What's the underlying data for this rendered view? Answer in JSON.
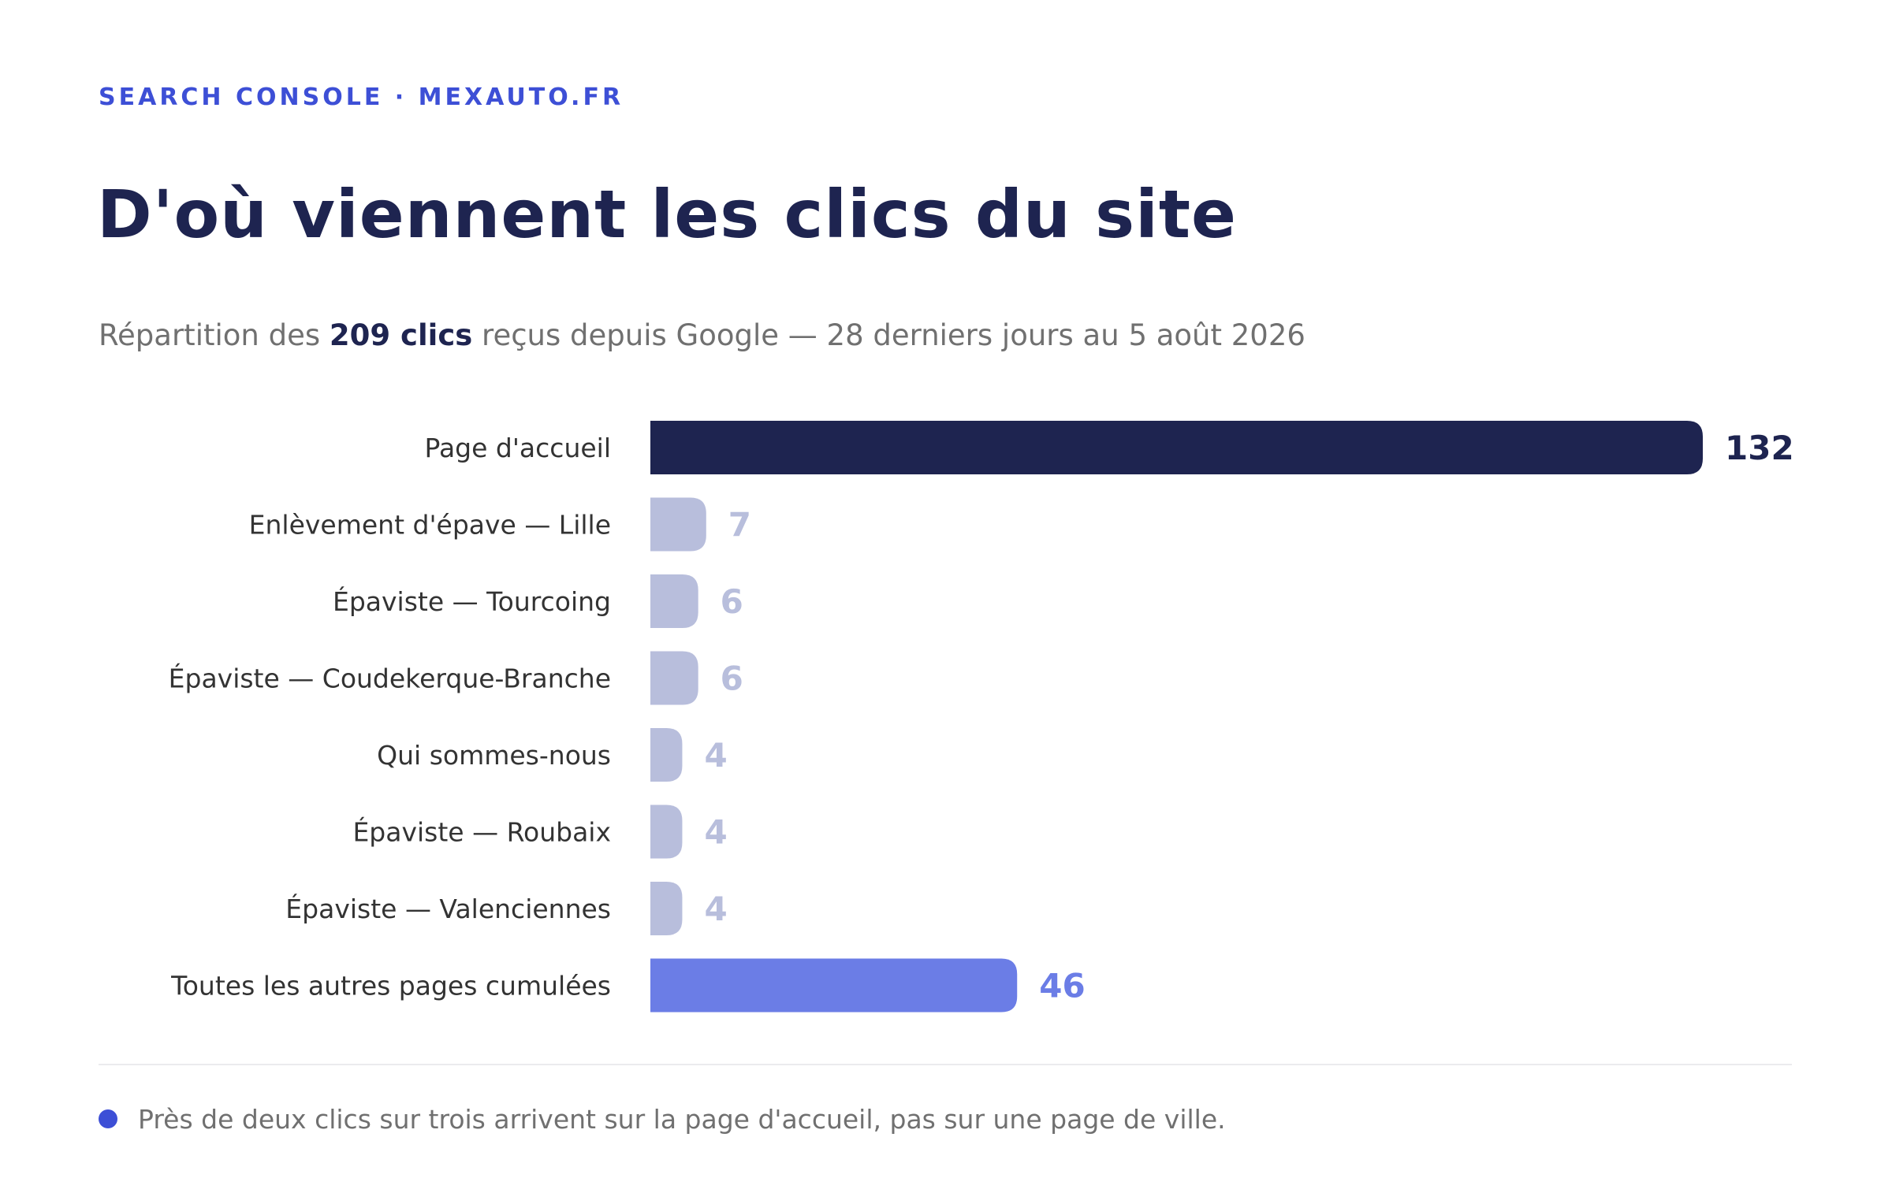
{
  "header": {
    "kicker": "SEARCH CONSOLE · MEXAUTO.FR",
    "title": "D'où viennent les clics du site",
    "subtitle_pre": "Répartition des ",
    "subtitle_bold": "209 clics",
    "subtitle_post": " reçus depuis Google — 28 derniers jours au 5 août 2026"
  },
  "chart_data": {
    "type": "bar",
    "orientation": "horizontal",
    "title": "D'où viennent les clics du site",
    "xlabel": "",
    "ylabel": "",
    "grid": false,
    "legend": "none",
    "categories": [
      "Page d'accueil",
      "Enlèvement d'épave — Lille",
      "Épaviste — Tourcoing",
      "Épaviste — Coudekerque-Branche",
      "Qui sommes-nous",
      "Épaviste — Roubaix",
      "Épaviste — Valenciennes",
      "Toutes les autres pages cumulées"
    ],
    "values": [
      132,
      7,
      6,
      6,
      4,
      4,
      4,
      46
    ],
    "xlim": [
      0,
      132
    ],
    "colors": {
      "highlight": "#1e2450",
      "default": "#b8bedc",
      "aggregate": "#6b7de6",
      "label": "#333333"
    },
    "bar_styles": [
      "highlight",
      "default",
      "default",
      "default",
      "default",
      "default",
      "default",
      "aggregate"
    ]
  },
  "footer": {
    "note": "Près de deux clics sur trois arrivent sur la page d'accueil, pas sur une page de ville.",
    "dot_color": "#3d4fd6"
  }
}
